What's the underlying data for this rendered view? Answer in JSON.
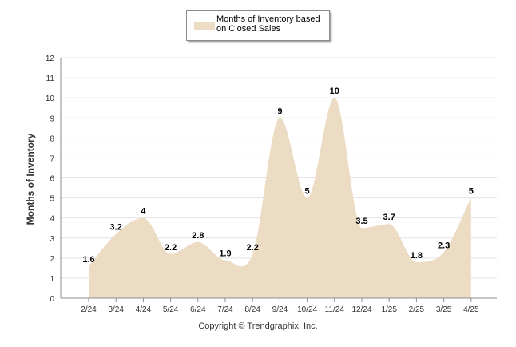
{
  "legend": {
    "label": "Months of Inventory based on Closed Sales"
  },
  "footer": {
    "copyright": "Copyright © Trendgraphix, Inc."
  },
  "colors": {
    "area": "#ecdcc3",
    "grid": "#e4e4e4",
    "axis": "#8c8c8c",
    "text": "#333333"
  },
  "chart_data": {
    "type": "area",
    "title": "",
    "ylabel": "Months of Inventory",
    "xlabel": "",
    "ylim": [
      0,
      12
    ],
    "yticks": [
      0,
      1,
      2,
      3,
      4,
      5,
      6,
      7,
      8,
      9,
      10,
      11,
      12
    ],
    "grid": true,
    "legend_position": "top-center",
    "categories": [
      "2/24",
      "3/24",
      "4/24",
      "5/24",
      "6/24",
      "7/24",
      "8/24",
      "9/24",
      "10/24",
      "11/24",
      "12/24",
      "1/25",
      "2/25",
      "3/25",
      "4/25"
    ],
    "series": [
      {
        "name": "Months of Inventory based on Closed Sales",
        "values": [
          1.6,
          3.2,
          4,
          2.2,
          2.8,
          1.9,
          2.2,
          9,
          5,
          10,
          3.5,
          3.7,
          1.8,
          2.3,
          5
        ],
        "labels": [
          "1.6",
          "3.2",
          "4",
          "2.2",
          "2.8",
          "1.9",
          "2.2",
          "9",
          "5",
          "10",
          "3.5",
          "3.7",
          "1.8",
          "2.3",
          "5"
        ]
      }
    ]
  }
}
